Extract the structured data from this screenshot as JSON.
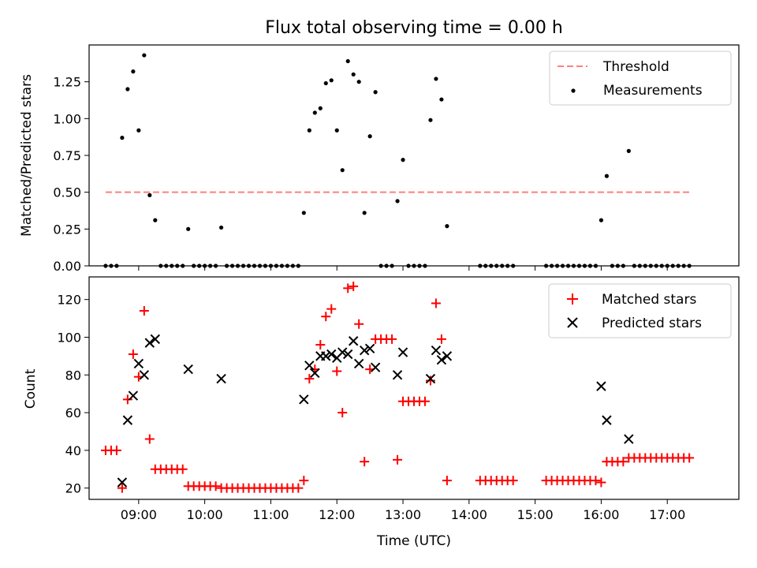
{
  "chart_data": [
    {
      "type": "scatter",
      "title": "Flux total observing time = 0.00 h",
      "xlabel": "",
      "ylabel": "Matched/Predicted stars",
      "xlim": [
        "08:15",
        "18:05"
      ],
      "ylim": [
        0,
        1.5
      ],
      "yticks": [
        "0.00",
        "0.25",
        "0.50",
        "0.75",
        "1.00",
        "1.25"
      ],
      "threshold": {
        "name": "Threshold",
        "y": 0.5,
        "x_start": "08:30",
        "x_end": "17:20",
        "color": "#ff7f7f"
      },
      "legend": {
        "position": "top-right",
        "entries": [
          "Threshold",
          "Measurements"
        ]
      },
      "series": [
        {
          "name": "Measurements",
          "color": "#000000",
          "marker": "dot",
          "points": [
            [
              "08:30",
              0
            ],
            [
              "08:35",
              0
            ],
            [
              "08:40",
              0
            ],
            [
              "08:45",
              0.87
            ],
            [
              "08:50",
              1.2
            ],
            [
              "08:55",
              1.32
            ],
            [
              "09:00",
              0.92
            ],
            [
              "09:05",
              1.43
            ],
            [
              "09:10",
              0.48
            ],
            [
              "09:15",
              0.31
            ],
            [
              "09:20",
              0
            ],
            [
              "09:25",
              0
            ],
            [
              "09:30",
              0
            ],
            [
              "09:35",
              0
            ],
            [
              "09:40",
              0
            ],
            [
              "09:45",
              0.25
            ],
            [
              "09:50",
              0
            ],
            [
              "09:55",
              0
            ],
            [
              "10:00",
              0
            ],
            [
              "10:05",
              0
            ],
            [
              "10:10",
              0
            ],
            [
              "10:15",
              0.26
            ],
            [
              "10:20",
              0
            ],
            [
              "10:25",
              0
            ],
            [
              "10:30",
              0
            ],
            [
              "10:35",
              0
            ],
            [
              "10:40",
              0
            ],
            [
              "10:45",
              0
            ],
            [
              "10:50",
              0
            ],
            [
              "10:55",
              0
            ],
            [
              "11:00",
              0
            ],
            [
              "11:05",
              0
            ],
            [
              "11:10",
              0
            ],
            [
              "11:15",
              0
            ],
            [
              "11:20",
              0
            ],
            [
              "11:25",
              0
            ],
            [
              "11:30",
              0.36
            ],
            [
              "11:35",
              0.92
            ],
            [
              "11:40",
              1.04
            ],
            [
              "11:45",
              1.07
            ],
            [
              "11:50",
              1.24
            ],
            [
              "11:55",
              1.26
            ],
            [
              "12:00",
              0.92
            ],
            [
              "12:05",
              0.65
            ],
            [
              "12:10",
              1.39
            ],
            [
              "12:15",
              1.3
            ],
            [
              "12:20",
              1.25
            ],
            [
              "12:25",
              0.36
            ],
            [
              "12:30",
              0.88
            ],
            [
              "12:35",
              1.18
            ],
            [
              "12:40",
              0
            ],
            [
              "12:45",
              0
            ],
            [
              "12:50",
              0
            ],
            [
              "12:55",
              0.44
            ],
            [
              "13:00",
              0.72
            ],
            [
              "13:05",
              0
            ],
            [
              "13:10",
              0
            ],
            [
              "13:15",
              0
            ],
            [
              "13:20",
              0
            ],
            [
              "13:25",
              0.99
            ],
            [
              "13:30",
              1.27
            ],
            [
              "13:35",
              1.13
            ],
            [
              "13:40",
              0.27
            ],
            [
              "14:10",
              0
            ],
            [
              "14:15",
              0
            ],
            [
              "14:20",
              0
            ],
            [
              "14:25",
              0
            ],
            [
              "14:30",
              0
            ],
            [
              "14:35",
              0
            ],
            [
              "14:40",
              0
            ],
            [
              "15:10",
              0
            ],
            [
              "15:15",
              0
            ],
            [
              "15:20",
              0
            ],
            [
              "15:25",
              0
            ],
            [
              "15:30",
              0
            ],
            [
              "15:35",
              0
            ],
            [
              "15:40",
              0
            ],
            [
              "15:45",
              0
            ],
            [
              "15:50",
              0
            ],
            [
              "15:55",
              0
            ],
            [
              "16:00",
              0.31
            ],
            [
              "16:05",
              0.61
            ],
            [
              "16:10",
              0
            ],
            [
              "16:15",
              0
            ],
            [
              "16:20",
              0
            ],
            [
              "16:25",
              0.78
            ],
            [
              "16:30",
              0
            ],
            [
              "16:35",
              0
            ],
            [
              "16:40",
              0
            ],
            [
              "16:45",
              0
            ],
            [
              "16:50",
              0
            ],
            [
              "16:55",
              0
            ],
            [
              "17:00",
              0
            ],
            [
              "17:05",
              0
            ],
            [
              "17:10",
              0
            ],
            [
              "17:15",
              0
            ],
            [
              "17:20",
              0
            ]
          ]
        }
      ]
    },
    {
      "type": "scatter",
      "title": "",
      "xlabel": "Time (UTC)",
      "ylabel": "Count",
      "xlim": [
        "08:15",
        "18:05"
      ],
      "ylim": [
        14,
        132
      ],
      "yticks": [
        "20",
        "40",
        "60",
        "80",
        "100",
        "120"
      ],
      "xticks": [
        "09:00",
        "10:00",
        "11:00",
        "12:00",
        "13:00",
        "14:00",
        "15:00",
        "16:00",
        "17:00"
      ],
      "legend": {
        "position": "top-right",
        "entries": [
          "Matched stars",
          "Predicted stars"
        ]
      },
      "series": [
        {
          "name": "Matched stars",
          "color": "#ff0000",
          "marker": "plus",
          "points": [
            [
              "08:30",
              40
            ],
            [
              "08:35",
              40
            ],
            [
              "08:40",
              40
            ],
            [
              "08:45",
              20
            ],
            [
              "08:50",
              67
            ],
            [
              "08:55",
              91
            ],
            [
              "09:00",
              79
            ],
            [
              "09:05",
              114
            ],
            [
              "09:10",
              46
            ],
            [
              "09:15",
              30
            ],
            [
              "09:20",
              30
            ],
            [
              "09:25",
              30
            ],
            [
              "09:30",
              30
            ],
            [
              "09:35",
              30
            ],
            [
              "09:40",
              30
            ],
            [
              "09:45",
              21
            ],
            [
              "09:50",
              21
            ],
            [
              "09:55",
              21
            ],
            [
              "10:00",
              21
            ],
            [
              "10:05",
              21
            ],
            [
              "10:10",
              21
            ],
            [
              "10:15",
              20
            ],
            [
              "10:20",
              20
            ],
            [
              "10:25",
              20
            ],
            [
              "10:30",
              20
            ],
            [
              "10:35",
              20
            ],
            [
              "10:40",
              20
            ],
            [
              "10:45",
              20
            ],
            [
              "10:50",
              20
            ],
            [
              "10:55",
              20
            ],
            [
              "11:00",
              20
            ],
            [
              "11:05",
              20
            ],
            [
              "11:10",
              20
            ],
            [
              "11:15",
              20
            ],
            [
              "11:20",
              20
            ],
            [
              "11:25",
              20
            ],
            [
              "11:30",
              24
            ],
            [
              "11:35",
              78
            ],
            [
              "11:40",
              83
            ],
            [
              "11:45",
              96
            ],
            [
              "11:50",
              111
            ],
            [
              "11:55",
              115
            ],
            [
              "12:00",
              82
            ],
            [
              "12:05",
              60
            ],
            [
              "12:10",
              126
            ],
            [
              "12:15",
              127
            ],
            [
              "12:20",
              107
            ],
            [
              "12:25",
              34
            ],
            [
              "12:30",
              83
            ],
            [
              "12:35",
              99
            ],
            [
              "12:40",
              99
            ],
            [
              "12:45",
              99
            ],
            [
              "12:50",
              99
            ],
            [
              "12:55",
              35
            ],
            [
              "13:00",
              66
            ],
            [
              "13:05",
              66
            ],
            [
              "13:10",
              66
            ],
            [
              "13:15",
              66
            ],
            [
              "13:20",
              66
            ],
            [
              "13:25",
              77
            ],
            [
              "13:30",
              118
            ],
            [
              "13:35",
              99
            ],
            [
              "13:40",
              24
            ],
            [
              "14:10",
              24
            ],
            [
              "14:15",
              24
            ],
            [
              "14:20",
              24
            ],
            [
              "14:25",
              24
            ],
            [
              "14:30",
              24
            ],
            [
              "14:35",
              24
            ],
            [
              "14:40",
              24
            ],
            [
              "15:10",
              24
            ],
            [
              "15:15",
              24
            ],
            [
              "15:20",
              24
            ],
            [
              "15:25",
              24
            ],
            [
              "15:30",
              24
            ],
            [
              "15:35",
              24
            ],
            [
              "15:40",
              24
            ],
            [
              "15:45",
              24
            ],
            [
              "15:50",
              24
            ],
            [
              "15:55",
              24
            ],
            [
              "16:00",
              23
            ],
            [
              "16:05",
              34
            ],
            [
              "16:10",
              34
            ],
            [
              "16:15",
              34
            ],
            [
              "16:20",
              34
            ],
            [
              "16:25",
              36
            ],
            [
              "16:30",
              36
            ],
            [
              "16:35",
              36
            ],
            [
              "16:40",
              36
            ],
            [
              "16:45",
              36
            ],
            [
              "16:50",
              36
            ],
            [
              "16:55",
              36
            ],
            [
              "17:00",
              36
            ],
            [
              "17:05",
              36
            ],
            [
              "17:10",
              36
            ],
            [
              "17:15",
              36
            ],
            [
              "17:20",
              36
            ]
          ]
        },
        {
          "name": "Predicted stars",
          "color": "#000000",
          "marker": "x",
          "points": [
            [
              "08:45",
              23
            ],
            [
              "08:50",
              56
            ],
            [
              "08:55",
              69
            ],
            [
              "09:00",
              86
            ],
            [
              "09:05",
              80
            ],
            [
              "09:10",
              97
            ],
            [
              "09:15",
              99
            ],
            [
              "09:45",
              83
            ],
            [
              "10:15",
              78
            ],
            [
              "11:30",
              67
            ],
            [
              "11:35",
              85
            ],
            [
              "11:40",
              81
            ],
            [
              "11:45",
              90
            ],
            [
              "11:50",
              90
            ],
            [
              "11:55",
              91
            ],
            [
              "12:00",
              89
            ],
            [
              "12:05",
              92
            ],
            [
              "12:10",
              91
            ],
            [
              "12:15",
              98
            ],
            [
              "12:20",
              86
            ],
            [
              "12:25",
              93
            ],
            [
              "12:30",
              94
            ],
            [
              "12:35",
              84
            ],
            [
              "12:55",
              80
            ],
            [
              "13:00",
              92
            ],
            [
              "13:25",
              78
            ],
            [
              "13:30",
              93
            ],
            [
              "13:35",
              88
            ],
            [
              "13:40",
              90
            ],
            [
              "16:00",
              74
            ],
            [
              "16:05",
              56
            ],
            [
              "16:25",
              46
            ]
          ]
        }
      ]
    }
  ]
}
